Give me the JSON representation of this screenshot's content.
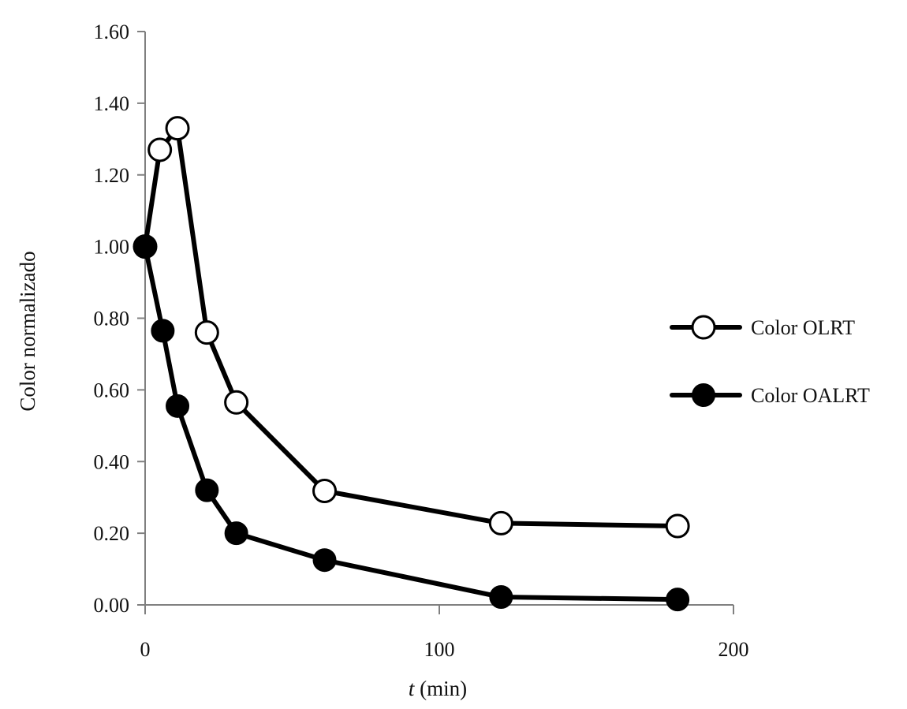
{
  "chart_data": {
    "type": "line",
    "xlabel_italic": "t",
    "xlabel_rest": " (min)",
    "ylabel": "Color normalizado",
    "xlim": [
      0,
      200
    ],
    "ylim": [
      0,
      1.6
    ],
    "x_ticks": [
      0,
      100,
      200
    ],
    "x_tick_labels": [
      "0",
      "100",
      "200"
    ],
    "y_ticks": [
      0,
      0.2,
      0.4,
      0.6,
      0.8,
      1.0,
      1.2,
      1.4,
      1.6
    ],
    "y_tick_labels": [
      "0.00",
      "0.20",
      "0.40",
      "0.60",
      "0.80",
      "1.00",
      "1.20",
      "1.40",
      "1.60"
    ],
    "grid": false,
    "legend_position": "right",
    "series": [
      {
        "name": "Color OLRT",
        "marker": "open-circle",
        "color": "#000000",
        "x": [
          0,
          5,
          11,
          21,
          31,
          61,
          121,
          181
        ],
        "y": [
          1.0,
          1.27,
          1.33,
          0.76,
          0.565,
          0.318,
          0.228,
          0.22
        ]
      },
      {
        "name": "Color OALRT",
        "marker": "filled-circle",
        "color": "#000000",
        "x": [
          0,
          6,
          11,
          21,
          31,
          61,
          121,
          181
        ],
        "y": [
          1.0,
          0.765,
          0.555,
          0.32,
          0.2,
          0.125,
          0.022,
          0.015
        ]
      }
    ]
  }
}
